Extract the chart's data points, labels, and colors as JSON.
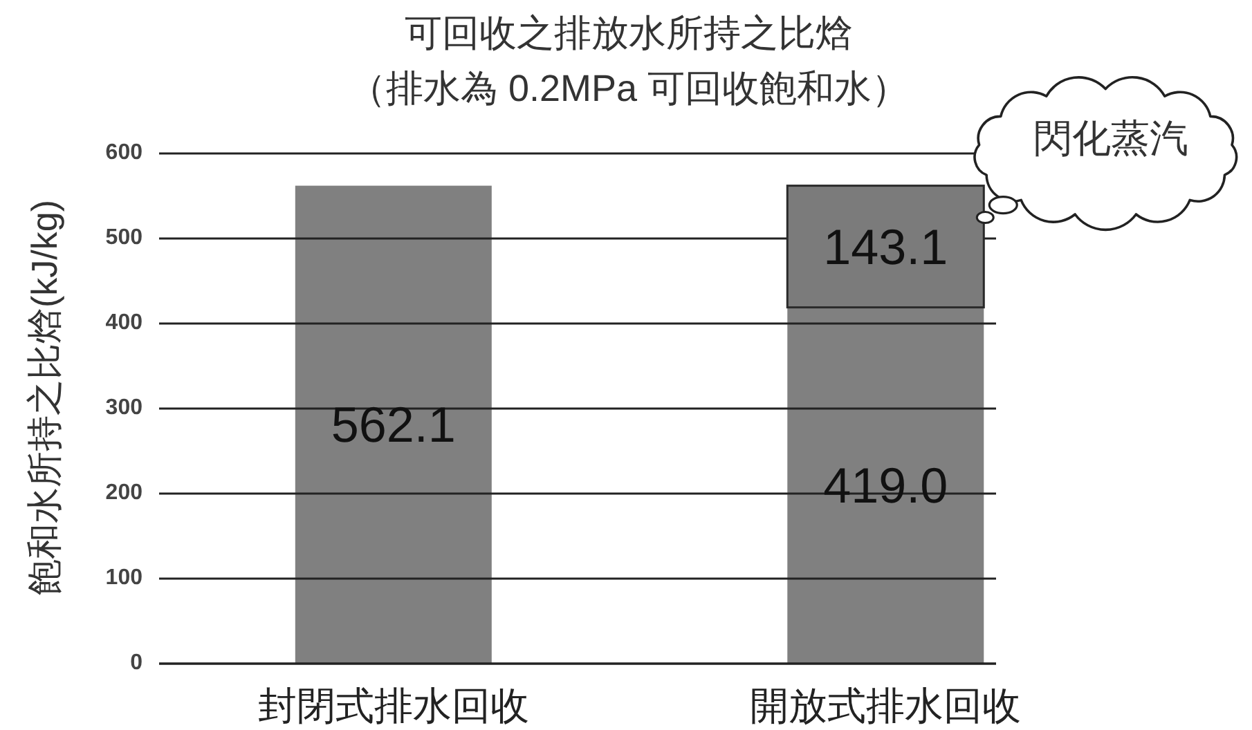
{
  "chart_data": {
    "type": "bar",
    "title": "可回收之排放水所持之比焓",
    "subtitle": "（排水為 0.2MPa 可回收飽和水）",
    "ylabel": "飽和水所持之比焓(kJ/kg)",
    "categories": [
      "封閉式排水回收",
      "開放式排水回收"
    ],
    "series": [
      {
        "color": "#808080",
        "values": [
          562.1,
          419.0
        ],
        "value_labels": [
          "562.1",
          "419.0"
        ]
      },
      {
        "name": "閃化蒸汽",
        "color": "#7b7b7b",
        "values": [
          null,
          143.1
        ],
        "value_labels": [
          null,
          "143.1"
        ]
      }
    ],
    "stacked": true,
    "ylim": [
      0,
      600
    ],
    "yticks": [
      0,
      100,
      200,
      300,
      400,
      500,
      600
    ],
    "grid": "y"
  }
}
